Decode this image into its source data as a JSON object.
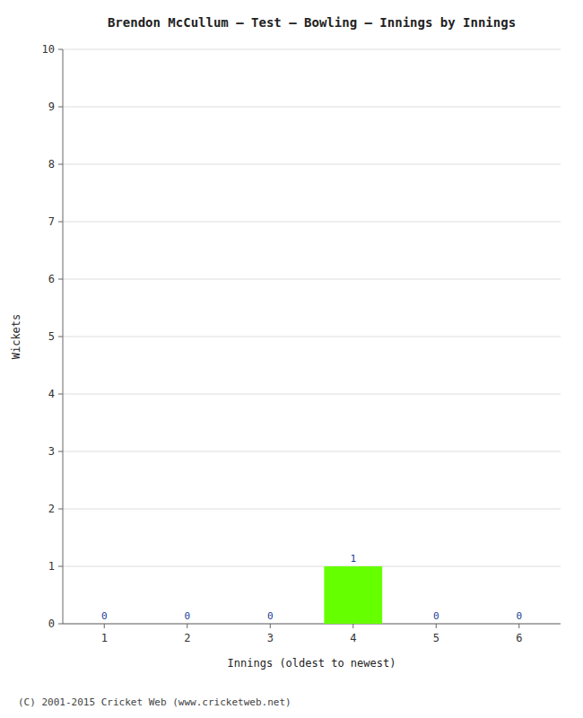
{
  "chart_data": {
    "type": "bar",
    "title": "Brendon McCullum – Test – Bowling – Innings by Innings",
    "x_label": "Innings (oldest to newest)",
    "y_label": "Wickets",
    "categories": [
      1,
      2,
      3,
      4,
      5,
      6
    ],
    "values": [
      0,
      0,
      0,
      1,
      0,
      0
    ],
    "color": "#66ff00",
    "ylim": [
      0,
      10
    ],
    "yticks": [
      0,
      1,
      2,
      3,
      4,
      5,
      6,
      7,
      8,
      9,
      10
    ],
    "grid": true,
    "data_labels": true,
    "annotations": [
      "(C) 2001-2015 Cricket Web (www.cricketweb.net)"
    ]
  }
}
